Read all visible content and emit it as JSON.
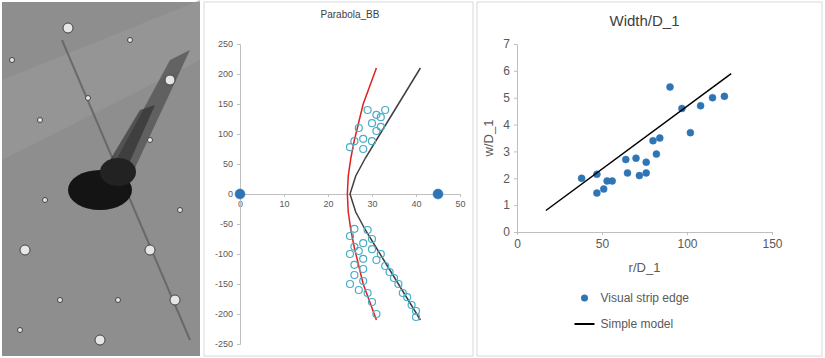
{
  "chart_data": [
    {
      "type": "scatter",
      "title": "Parabola_BB",
      "xlim": [
        0,
        50
      ],
      "xticks": [
        0,
        10,
        20,
        30,
        40,
        50
      ],
      "ylim": [
        -250,
        250
      ],
      "yticks": [
        -250,
        -200,
        -150,
        -100,
        -50,
        0,
        50,
        100,
        150,
        200,
        250
      ],
      "grid": false,
      "series": [
        {
          "type": "scatter",
          "marker": "large-circle",
          "color": "#2e75b6",
          "x": [
            0,
            45
          ],
          "values": [
            0,
            0
          ]
        },
        {
          "type": "line",
          "color": "#e02020",
          "x": [
            31,
            29.5,
            28,
            27,
            26,
            25.2,
            24.6,
            24.4,
            24.6,
            25.2,
            26,
            27,
            28,
            29.5,
            31
          ],
          "values": [
            -210,
            -180,
            -150,
            -120,
            -90,
            -60,
            -30,
            0,
            30,
            60,
            90,
            120,
            150,
            180,
            210
          ]
        },
        {
          "type": "line",
          "color": "#404040",
          "x": [
            41,
            38.5,
            36,
            33.5,
            31,
            28.5,
            26.3,
            25,
            26.3,
            28.5,
            31,
            33.5,
            36,
            38.5,
            41
          ],
          "values": [
            -210,
            -180,
            -150,
            -120,
            -90,
            -60,
            -30,
            0,
            30,
            60,
            90,
            120,
            150,
            180,
            210
          ]
        },
        {
          "type": "scatter",
          "marker": "open-circle",
          "color": "#4bacc6",
          "x": [
            29,
            31,
            33,
            32,
            30,
            27,
            32,
            31,
            28,
            26,
            30,
            25,
            28,
            26,
            29,
            25,
            30,
            28,
            26,
            27,
            30,
            25,
            32,
            28,
            31,
            26,
            33,
            28,
            34,
            26,
            35,
            28,
            36,
            25,
            27,
            37,
            29,
            38,
            30,
            39,
            40,
            31,
            40
          ],
          "values": [
            140,
            132,
            140,
            128,
            118,
            110,
            112,
            105,
            92,
            88,
            88,
            78,
            75,
            -58,
            -60,
            -70,
            -75,
            -82,
            -88,
            -95,
            -92,
            -100,
            -100,
            -108,
            -110,
            -118,
            -120,
            -125,
            -130,
            -135,
            -140,
            -145,
            -150,
            -150,
            -160,
            -165,
            -165,
            -172,
            -180,
            -185,
            -195,
            -200,
            -205
          ]
        }
      ]
    },
    {
      "type": "scatter",
      "title": "Width/D_1",
      "x_label": "r/D_1",
      "y_label": "w/D_1",
      "xlim": [
        0,
        150
      ],
      "xticks": [
        0,
        50,
        100,
        150
      ],
      "ylim": [
        0,
        7
      ],
      "yticks": [
        0,
        1,
        2,
        3,
        4,
        5,
        6,
        7
      ],
      "grid": false,
      "legend": "bottom",
      "series": [
        {
          "name": "Visual strip edge",
          "type": "scatter",
          "marker": "circle",
          "color": "#2e75b6",
          "x": [
            38,
            47,
            47,
            51,
            53,
            56,
            64,
            65,
            70,
            72,
            76,
            76,
            80,
            82,
            84,
            90,
            97,
            102,
            108,
            115,
            122
          ],
          "values": [
            2.0,
            2.15,
            1.45,
            1.6,
            1.9,
            1.9,
            2.7,
            2.2,
            2.75,
            2.1,
            2.2,
            2.6,
            3.4,
            2.9,
            3.5,
            5.4,
            4.6,
            3.7,
            4.7,
            5.0,
            5.05
          ]
        },
        {
          "name": "Simple model",
          "type": "line",
          "color": "#000000",
          "x": [
            17,
            126
          ],
          "values": [
            0.8,
            5.9
          ]
        }
      ]
    }
  ]
}
